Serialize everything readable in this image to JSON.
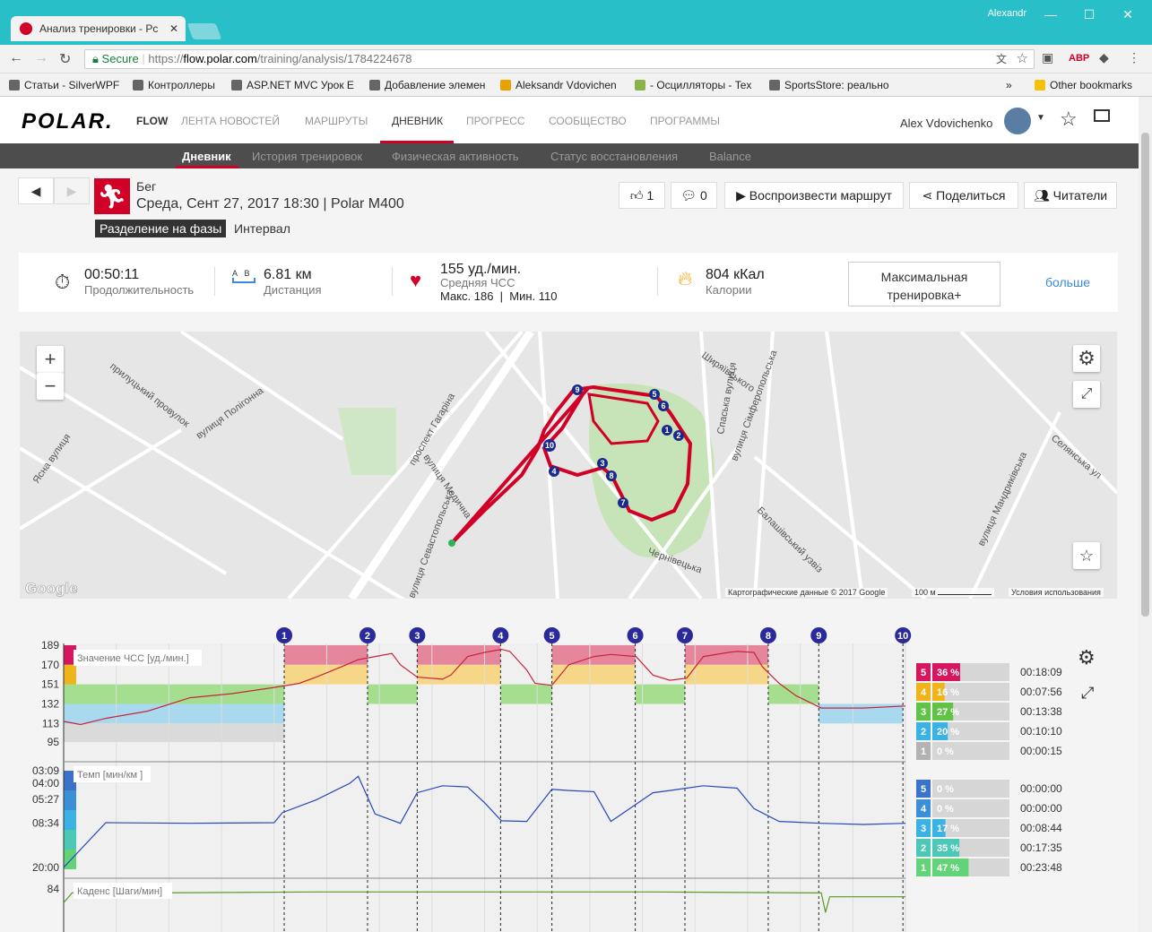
{
  "browser": {
    "tab_title": "Анализ тренировки - Pc",
    "user": "Alexandr",
    "secure": "Secure",
    "url_scheme": "https://",
    "url_host": "flow.polar.com",
    "url_path": "/training/analysis/1784224678",
    "bookmarks": [
      "Статьи - SilverWPF",
      "Контроллеры",
      "ASP.NET MVC Урок E",
      "Добавление элемен",
      "Aleksandr Vdovichen",
      "- Осцилляторы - Tex",
      "SportsStore: реально"
    ],
    "other_bookmarks": "Other bookmarks"
  },
  "nav": {
    "logo": "POLAR.",
    "flow": "FLOW",
    "items": [
      "ЛЕНТА НОВОСТЕЙ",
      "МАРШРУТЫ",
      "ДНЕВНИК",
      "ПРОГРЕСС",
      "СООБЩЕСТВО",
      "ПРОГРАММЫ"
    ],
    "active": "ДНЕВНИК",
    "user_name": "Alex Vdovichenko"
  },
  "subnav": {
    "items": [
      "Дневник",
      "История тренировок",
      "Физическая активность",
      "Статус восстановления",
      "Balance"
    ]
  },
  "activity": {
    "sport": "Бег",
    "date": "Среда, Сент 27, 2017 18:30 | Polar M400",
    "phase_label": "Разделение на фазы",
    "phase_value": "Интервал",
    "likes": "1",
    "comments": "0",
    "replay": "Воспроизвести маршрут",
    "share": "Поделиться",
    "readers": "Читатели"
  },
  "summary": {
    "duration": "00:50:11",
    "duration_label": "Продолжительность",
    "dist_a": "A",
    "dist_b": "B",
    "distance": "6.81 км",
    "distance_label": "Дистанция",
    "hr": "155 уд./мин.",
    "hr_label": "Средняя ЧСС",
    "hr_max": "Макс. 186",
    "hr_min": "Мин. 110",
    "calories": "804 кКал",
    "calories_label": "Калории",
    "training": "Максимальная тренировка+",
    "more": "больше"
  },
  "map": {
    "streets": [
      "вулиця Полігонна",
      "проспект Гагаріна",
      "вулиця Медична",
      "вулиця Севастопольська",
      "Спаська вулиця",
      "вулиця Сімферопольська",
      "Селянська ул",
      "вулиця Мандриківська",
      "Балашівський узвіз",
      "Чернівецька",
      "Ясна вулиця",
      "Фрунзе",
      "Ширяївського",
      "прилуцький провулок"
    ],
    "laps": [
      "1",
      "2",
      "3",
      "4",
      "5",
      "6",
      "7",
      "8",
      "9",
      "10"
    ],
    "google": "Google",
    "attribution": "Картографические данные © 2017 Google",
    "scale": "100 м",
    "terms": "Условия использования"
  },
  "chart_data": [
    {
      "type": "line",
      "title": "Значение ЧСС [уд./мин.]",
      "ylabel": "Значение ЧСС [уд./мин.]",
      "yticks": [
        189,
        170,
        151,
        132,
        113,
        95
      ],
      "ylim": [
        95,
        189
      ],
      "laps": [
        "1",
        "2",
        "3",
        "4",
        "5",
        "6",
        "7",
        "8",
        "9",
        "10"
      ],
      "series": [
        {
          "x": [
            0,
            0.02,
            0.05,
            0.1,
            0.15,
            0.2,
            0.25,
            0.28,
            0.3,
            0.33,
            0.35,
            0.37,
            0.39,
            0.4,
            0.42,
            0.45,
            0.46,
            0.48,
            0.5,
            0.52,
            0.53,
            0.55,
            0.56,
            0.58,
            0.6,
            0.63,
            0.65,
            0.68,
            0.7,
            0.72,
            0.74,
            0.76,
            0.79,
            0.8,
            0.82,
            0.83,
            0.85,
            0.87,
            0.9,
            0.95,
            1.0
          ],
          "values": [
            115,
            112,
            118,
            125,
            138,
            142,
            148,
            152,
            158,
            168,
            175,
            178,
            181,
            170,
            158,
            156,
            160,
            178,
            182,
            185,
            183,
            165,
            152,
            150,
            170,
            178,
            180,
            178,
            160,
            155,
            157,
            178,
            182,
            183,
            182,
            168,
            152,
            140,
            128,
            128,
            130
          ]
        }
      ],
      "zones": [
        {
          "zone": "5",
          "percent": "36 %",
          "time": "00:18:09",
          "color": "#d6175f"
        },
        {
          "zone": "4",
          "percent": "16 %",
          "time": "00:07:56",
          "color": "#f0b41b"
        },
        {
          "zone": "3",
          "percent": "27 %",
          "time": "00:13:38",
          "color": "#61c248"
        },
        {
          "zone": "2",
          "percent": "20 %",
          "time": "00:10:10",
          "color": "#3bb2e4"
        },
        {
          "zone": "1",
          "percent": "0 %",
          "time": "00:00:15",
          "color": "#b3b3b3"
        }
      ]
    },
    {
      "type": "line",
      "title": "Темп [мин/км ]",
      "ylabel": "Темп [мин/км ]",
      "yticks": [
        "03:09",
        "04:00",
        "05:27",
        "08:34",
        "20:00"
      ],
      "series": [
        {
          "x": [
            0,
            0.05,
            0.15,
            0.25,
            0.26,
            0.3,
            0.34,
            0.35,
            0.37,
            0.4,
            0.42,
            0.45,
            0.48,
            0.5,
            0.52,
            0.55,
            0.58,
            0.6,
            0.63,
            0.65,
            0.7,
            0.72,
            0.76,
            0.8,
            0.82,
            0.85,
            0.9,
            0.95,
            1.0
          ],
          "values": [
            20.0,
            8.5,
            8.6,
            8.5,
            7.0,
            5.5,
            4.0,
            3.5,
            7.2,
            8.6,
            4.8,
            4.2,
            4.3,
            5.8,
            8.2,
            8.3,
            4.5,
            4.6,
            4.7,
            8.3,
            4.8,
            4.6,
            4.2,
            4.4,
            6.5,
            8.3,
            8.6,
            8.8,
            8.6
          ]
        }
      ],
      "zones": [
        {
          "zone": "5",
          "percent": "0 %",
          "time": "00:00:00",
          "color": "#3a73c9"
        },
        {
          "zone": "4",
          "percent": "0 %",
          "time": "00:00:00",
          "color": "#3b8fd8"
        },
        {
          "zone": "3",
          "percent": "17 %",
          "time": "00:08:44",
          "color": "#3bb2e4"
        },
        {
          "zone": "2",
          "percent": "35 %",
          "time": "00:17:35",
          "color": "#4cc8b6"
        },
        {
          "zone": "1",
          "percent": "47 %",
          "time": "00:23:48",
          "color": "#63d37a"
        }
      ]
    },
    {
      "type": "line",
      "title": "Каденс [Шаги/мин]",
      "ylabel": "Каденс [Шаги/мин]",
      "yticks": [
        84
      ],
      "series": [
        {
          "x": [
            0,
            0.01,
            0.1,
            0.3,
            0.5,
            0.7,
            0.9,
            0.905,
            0.91,
            1.0
          ],
          "values": [
            70,
            80,
            80,
            81,
            81,
            81,
            80,
            60,
            76,
            76
          ]
        }
      ]
    }
  ]
}
